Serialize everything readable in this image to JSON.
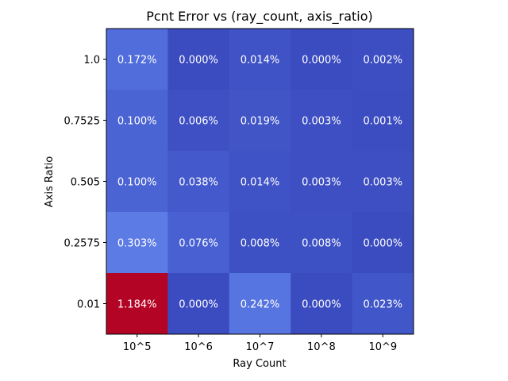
{
  "chart_data": {
    "type": "heatmap",
    "title": "Pcnt Error vs (ray_count, axis_ratio)",
    "xlabel": "Ray Count",
    "ylabel": "Axis Ratio",
    "x_categories": [
      "10^5",
      "10^6",
      "10^7",
      "10^8",
      "10^9"
    ],
    "y_categories": [
      "1.0",
      "0.7525",
      "0.505",
      "0.2575",
      "0.01"
    ],
    "values": [
      [
        0.172,
        0.0,
        0.014,
        0.0,
        0.002
      ],
      [
        0.1,
        0.006,
        0.019,
        0.003,
        0.001
      ],
      [
        0.1,
        0.038,
        0.014,
        0.003,
        0.003
      ],
      [
        0.303,
        0.076,
        0.008,
        0.008,
        0.0
      ],
      [
        1.184,
        0.0,
        0.242,
        0.0,
        0.023
      ]
    ],
    "cell_labels": [
      [
        "0.172%",
        "0.000%",
        "0.014%",
        "0.000%",
        "0.002%"
      ],
      [
        "0.100%",
        "0.006%",
        "0.019%",
        "0.003%",
        "0.001%"
      ],
      [
        "0.100%",
        "0.038%",
        "0.014%",
        "0.003%",
        "0.003%"
      ],
      [
        "0.303%",
        "0.076%",
        "0.008%",
        "0.008%",
        "0.000%"
      ],
      [
        "1.184%",
        "0.000%",
        "0.242%",
        "0.000%",
        "0.023%"
      ]
    ],
    "colormap": "coolwarm",
    "grid": false,
    "legend": "none"
  }
}
